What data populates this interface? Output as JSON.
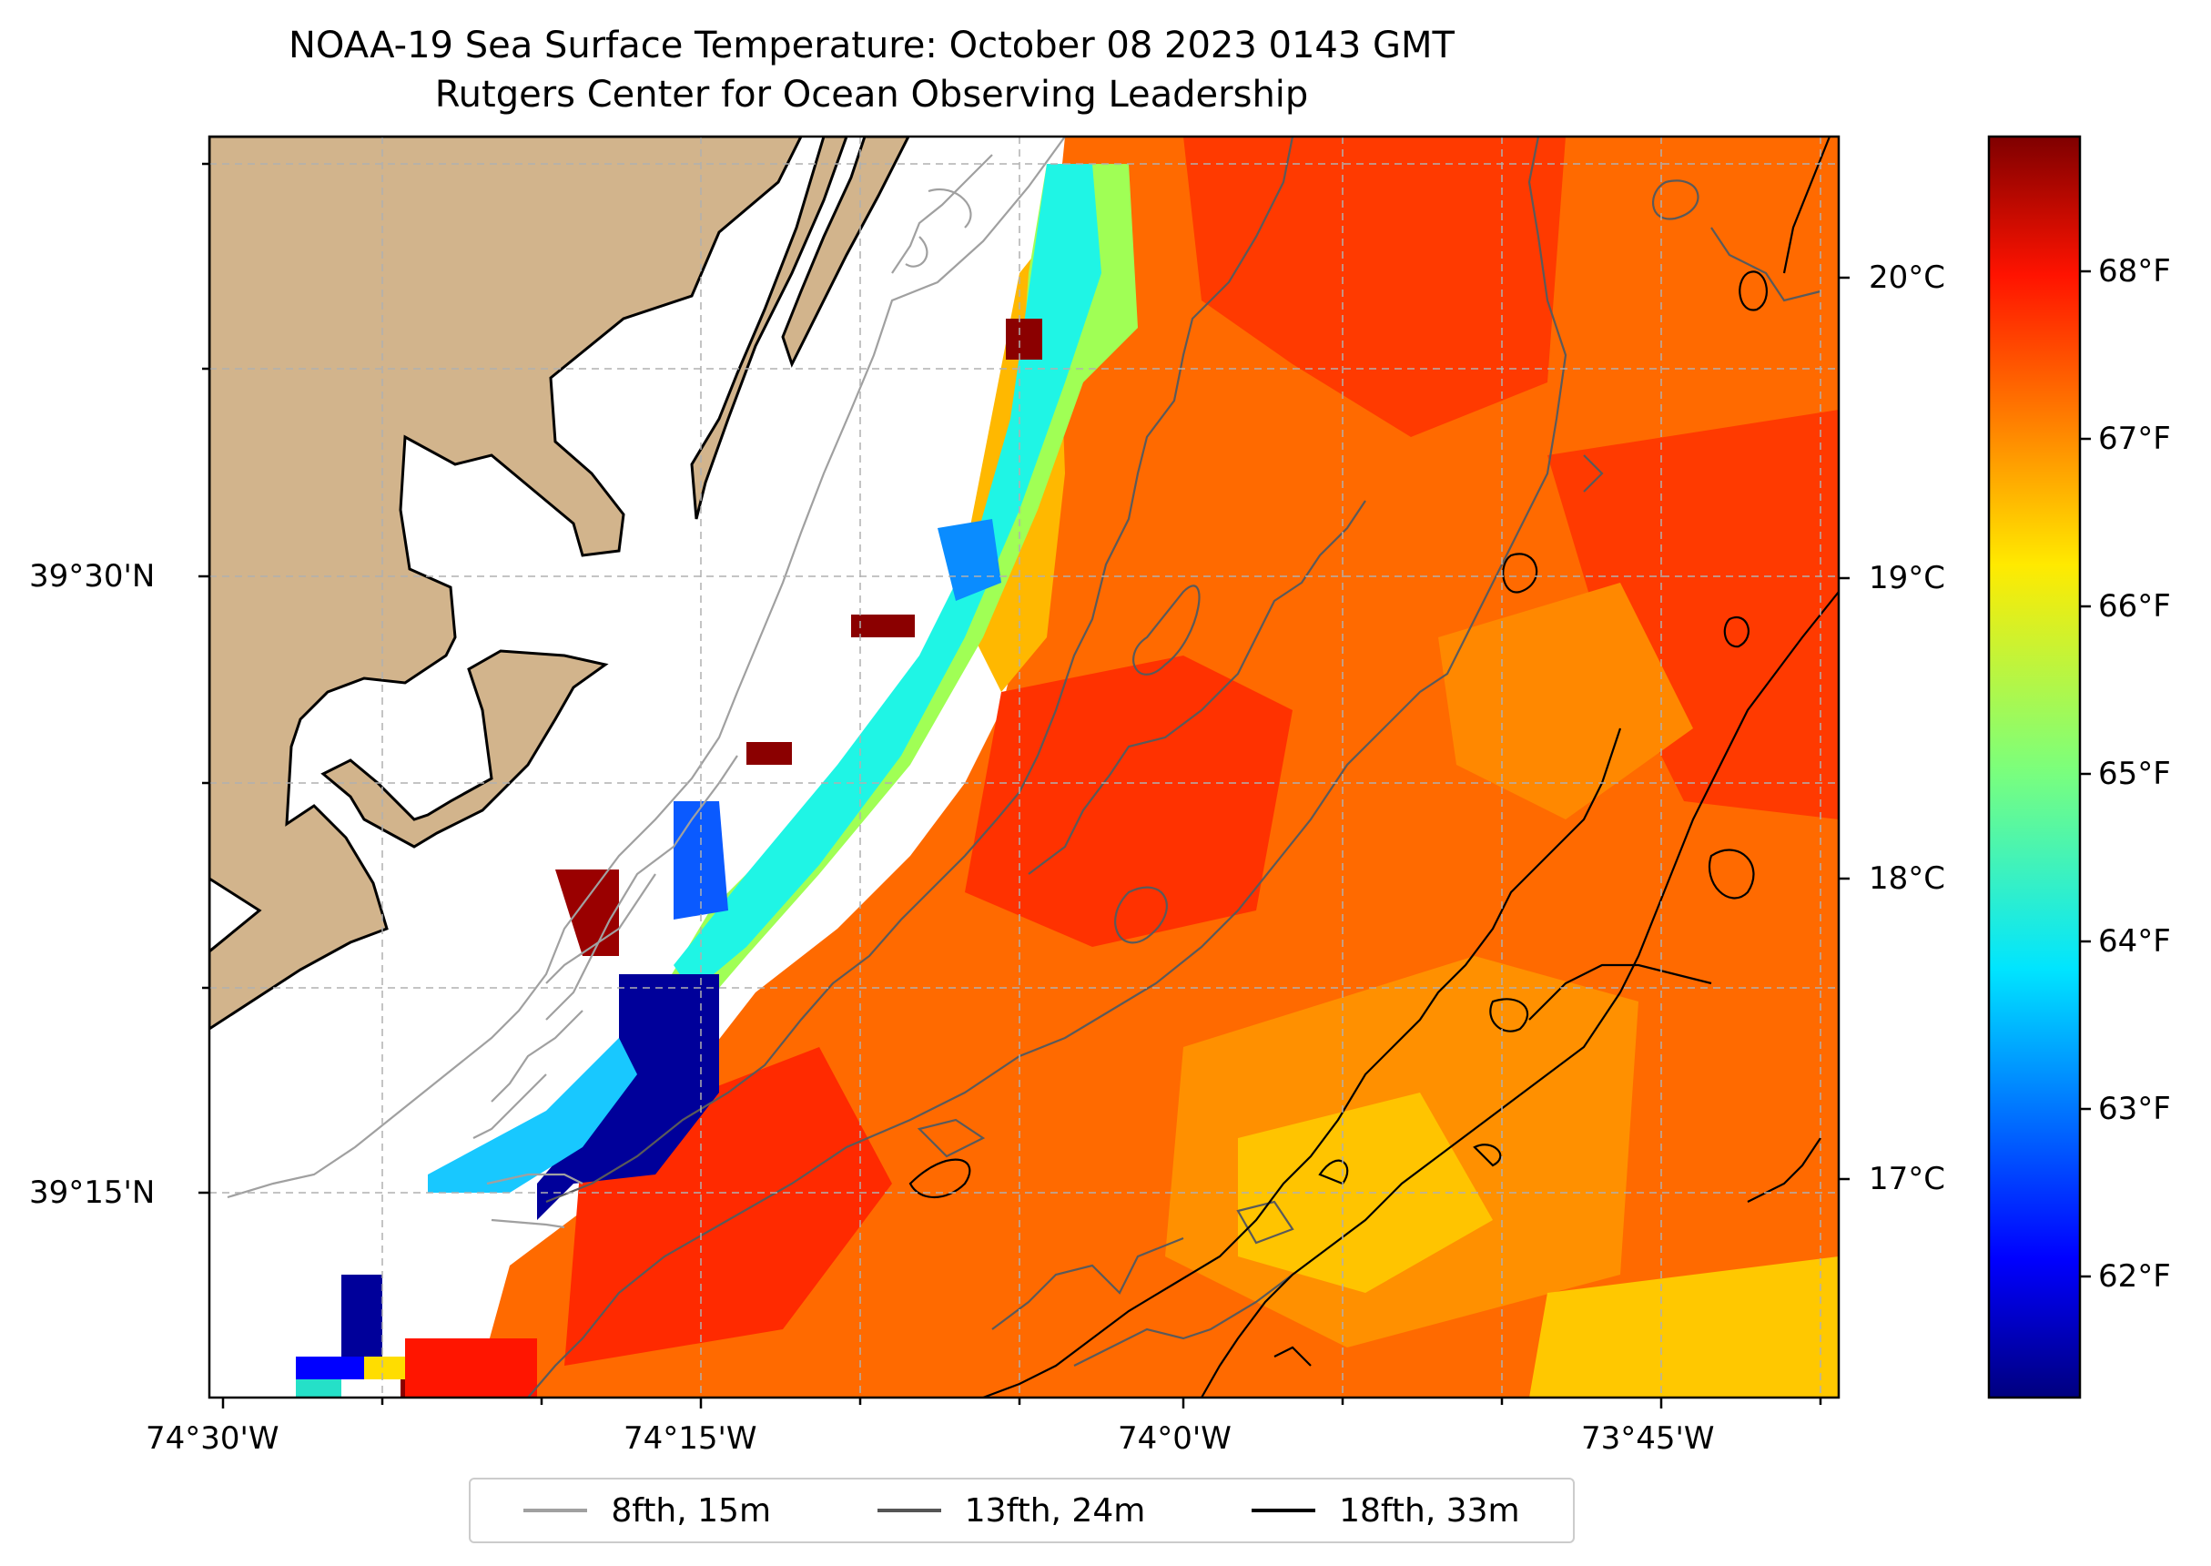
{
  "title": "NOAA-19 Sea Surface Temperature: October 08 2023 0143 GMT",
  "subtitle": "Rutgers Center for Ocean Observing Leadership",
  "axes": {
    "lon_ticks": [
      "74°30'W",
      "74°15'W",
      "74°0'W",
      "73°45'W"
    ],
    "lat_ticks": [
      "39°30'N",
      "39°15'N"
    ]
  },
  "colorbar": {
    "colormap": "jet",
    "range_f": [
      61.3,
      68.8
    ],
    "fahrenheit_ticks": [
      "62°F",
      "63°F",
      "64°F",
      "65°F",
      "66°F",
      "67°F",
      "68°F"
    ],
    "celsius_ticks": [
      "17°C",
      "18°C",
      "19°C",
      "20°C"
    ]
  },
  "legend": {
    "placement": "bottom-center",
    "items": [
      {
        "label": "8fth, 15m",
        "color": "#a0a0a0"
      },
      {
        "label": "13fth, 24m",
        "color": "#555555"
      },
      {
        "label": "18fth, 33m",
        "color": "#000000"
      }
    ]
  },
  "colors": {
    "land": "#d2b48c",
    "background": "#ffffff"
  }
}
